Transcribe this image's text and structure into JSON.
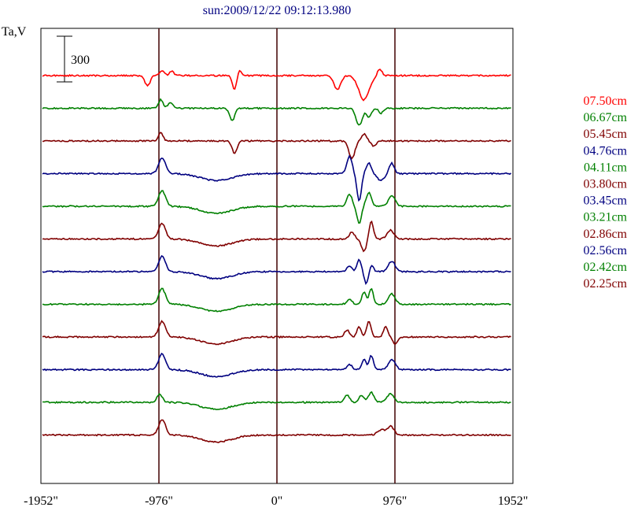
{
  "chart_data": {
    "type": "line",
    "title": "sun:2009/12/22 09:12:13.980",
    "ylabel": "Ta,V",
    "scale_bar_label": "300",
    "xlim": [
      -1952,
      1952
    ],
    "x_ticks": [
      {
        "value": -1952,
        "label": "-1952\""
      },
      {
        "value": -976,
        "label": "-976\""
      },
      {
        "value": 0,
        "label": "0\""
      },
      {
        "value": 976,
        "label": "976\""
      },
      {
        "value": 1952,
        "label": "1952\""
      }
    ],
    "vertical_markers": [
      -976,
      0,
      976
    ],
    "series": [
      {
        "name": "07.50cm",
        "color": "#ff0000",
        "baseline": 0,
        "features": [
          [
            -1070,
            -0.6,
            30
          ],
          [
            -950,
            0.3,
            25
          ],
          [
            -870,
            0.25,
            25
          ],
          [
            -350,
            -0.8,
            25
          ],
          [
            -310,
            0.3,
            25
          ],
          [
            500,
            -0.8,
            40
          ],
          [
            720,
            -1.4,
            60
          ],
          [
            850,
            0.4,
            25
          ]
        ]
      },
      {
        "name": "06.67cm",
        "color": "#008000",
        "baseline": -1,
        "features": [
          [
            -960,
            0.5,
            25
          ],
          [
            -880,
            0.3,
            30
          ],
          [
            -370,
            -0.7,
            30
          ],
          [
            680,
            -1.0,
            35
          ],
          [
            760,
            -0.5,
            30
          ],
          [
            860,
            -0.3,
            25
          ]
        ]
      },
      {
        "name": "05.45cm",
        "color": "#800000",
        "baseline": -2,
        "features": [
          [
            -960,
            0.5,
            25
          ],
          [
            -350,
            -0.7,
            30
          ],
          [
            620,
            -1.0,
            35
          ],
          [
            720,
            0.4,
            30
          ],
          [
            800,
            -0.3,
            30
          ]
        ]
      },
      {
        "name": "04.76cm",
        "color": "#000080",
        "baseline": -3,
        "features": [
          [
            -950,
            0.9,
            40
          ],
          [
            -500,
            -0.4,
            180
          ],
          [
            600,
            1.0,
            30
          ],
          [
            680,
            -1.6,
            25
          ],
          [
            760,
            0.6,
            30
          ],
          [
            860,
            -0.4,
            40
          ],
          [
            950,
            0.6,
            30
          ]
        ]
      },
      {
        "name": "04.11cm",
        "color": "#008000",
        "baseline": -4,
        "features": [
          [
            -950,
            0.9,
            40
          ],
          [
            -500,
            -0.4,
            180
          ],
          [
            600,
            0.7,
            30
          ],
          [
            680,
            -1.0,
            25
          ],
          [
            760,
            0.8,
            30
          ],
          [
            950,
            0.6,
            40
          ]
        ]
      },
      {
        "name": "03.80cm",
        "color": "#800000",
        "baseline": -5,
        "features": [
          [
            -950,
            0.9,
            40
          ],
          [
            -500,
            -0.4,
            180
          ],
          [
            620,
            0.4,
            30
          ],
          [
            720,
            -0.7,
            30
          ],
          [
            780,
            1.0,
            25
          ],
          [
            940,
            0.5,
            40
          ]
        ]
      },
      {
        "name": "03.45cm",
        "color": "#000080",
        "baseline": -6,
        "features": [
          [
            -950,
            0.9,
            40
          ],
          [
            -500,
            -0.4,
            180
          ],
          [
            600,
            0.3,
            30
          ],
          [
            680,
            0.7,
            25
          ],
          [
            740,
            -0.7,
            25
          ],
          [
            780,
            0.4,
            25
          ],
          [
            950,
            0.6,
            40
          ]
        ]
      },
      {
        "name": "03.21cm",
        "color": "#008000",
        "baseline": -7,
        "features": [
          [
            -950,
            0.9,
            40
          ],
          [
            -500,
            -0.4,
            180
          ],
          [
            600,
            0.3,
            30
          ],
          [
            720,
            0.7,
            25
          ],
          [
            780,
            0.9,
            25
          ],
          [
            950,
            0.6,
            40
          ]
        ]
      },
      {
        "name": "02.86cm",
        "color": "#800000",
        "baseline": -8,
        "features": [
          [
            -950,
            0.9,
            40
          ],
          [
            -500,
            -0.4,
            180
          ],
          [
            580,
            0.4,
            30
          ],
          [
            680,
            0.6,
            25
          ],
          [
            760,
            0.9,
            25
          ],
          [
            900,
            0.6,
            25
          ],
          [
            980,
            -0.4,
            30
          ]
        ]
      },
      {
        "name": "02.56cm",
        "color": "#000080",
        "baseline": -9,
        "features": [
          [
            -950,
            0.9,
            40
          ],
          [
            -500,
            -0.4,
            180
          ],
          [
            600,
            0.3,
            30
          ],
          [
            720,
            0.6,
            25
          ],
          [
            780,
            0.8,
            25
          ],
          [
            950,
            0.6,
            40
          ]
        ]
      },
      {
        "name": "02.42cm",
        "color": "#008000",
        "baseline": -10,
        "features": [
          [
            -970,
            0.5,
            30
          ],
          [
            -500,
            -0.4,
            180
          ],
          [
            580,
            0.4,
            30
          ],
          [
            700,
            0.4,
            30
          ],
          [
            780,
            0.6,
            30
          ],
          [
            940,
            0.5,
            40
          ]
        ]
      },
      {
        "name": "02.25cm",
        "color": "#800000",
        "baseline": -11,
        "features": [
          [
            -950,
            0.9,
            40
          ],
          [
            -500,
            -0.4,
            180
          ],
          [
            860,
            0.3,
            40
          ],
          [
            940,
            0.5,
            40
          ]
        ]
      }
    ]
  }
}
